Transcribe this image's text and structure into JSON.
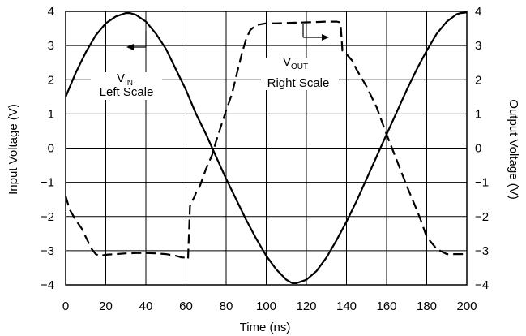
{
  "chart_data": {
    "type": "line",
    "xlabel": "Time (ns)",
    "ylabel_left": "Input Voltage (V)",
    "ylabel_right": "Output Voltage (V)",
    "xlim": [
      0,
      200
    ],
    "ylim": [
      -4,
      4
    ],
    "x_ticks": [
      0,
      20,
      40,
      60,
      80,
      100,
      120,
      140,
      160,
      180,
      200
    ],
    "y_ticks": [
      4,
      3,
      2,
      1,
      0,
      -1,
      -2,
      -3,
      -4
    ],
    "y_tick_labels": [
      "4",
      "3",
      "2",
      "1",
      "0",
      "−1",
      "−2",
      "−3",
      "−4"
    ],
    "grid": true,
    "series": [
      {
        "style": "solid",
        "x": [
          0,
          5,
          10,
          15,
          20,
          25,
          30,
          32,
          35,
          40,
          45,
          50,
          55,
          60,
          65,
          70,
          75,
          80,
          85,
          90,
          95,
          100,
          105,
          110,
          113,
          115,
          120,
          125,
          130,
          135,
          140,
          145,
          150,
          155,
          160,
          165,
          170,
          175,
          180,
          185,
          190,
          195,
          197,
          200
        ],
        "y": [
          1.5,
          2.2,
          2.8,
          3.3,
          3.65,
          3.85,
          3.95,
          3.95,
          3.9,
          3.7,
          3.35,
          2.9,
          2.3,
          1.7,
          1.0,
          0.4,
          -0.25,
          -0.9,
          -1.5,
          -2.1,
          -2.65,
          -3.15,
          -3.55,
          -3.85,
          -3.95,
          -3.95,
          -3.85,
          -3.6,
          -3.2,
          -2.7,
          -2.15,
          -1.55,
          -0.9,
          -0.25,
          0.4,
          1.05,
          1.7,
          2.3,
          2.85,
          3.35,
          3.7,
          3.92,
          3.95,
          3.97
        ]
      },
      {
        "style": "dashed",
        "x": [
          0,
          2,
          5,
          8,
          10,
          13,
          15,
          17,
          20,
          25,
          30,
          35,
          40,
          45,
          50,
          55,
          58,
          60,
          61,
          62,
          63,
          64,
          65,
          67,
          70,
          73,
          75,
          80,
          83,
          85,
          88,
          90,
          92,
          95,
          100,
          105,
          110,
          115,
          120,
          125,
          130,
          135,
          137,
          138,
          140,
          143,
          145,
          150,
          155,
          160,
          165,
          170,
          175,
          177,
          180,
          185,
          190,
          200
        ],
        "y": [
          -1.4,
          -1.8,
          -2.1,
          -2.35,
          -2.6,
          -2.95,
          -3.1,
          -3.15,
          -3.12,
          -3.1,
          -3.08,
          -3.07,
          -3.07,
          -3.08,
          -3.1,
          -3.15,
          -3.2,
          -3.2,
          -3.25,
          -1.7,
          -1.55,
          -1.45,
          -1.3,
          -1.1,
          -0.6,
          -0.2,
          0.2,
          1.1,
          1.6,
          2.1,
          2.8,
          3.2,
          3.45,
          3.6,
          3.65,
          3.65,
          3.66,
          3.67,
          3.68,
          3.69,
          3.7,
          3.7,
          3.68,
          2.85,
          2.75,
          2.55,
          2.3,
          1.8,
          1.2,
          0.4,
          -0.35,
          -1.1,
          -1.8,
          -2.1,
          -2.6,
          -2.95,
          -3.1,
          -3.1
        ]
      }
    ],
    "annotations": [
      {
        "main": "V",
        "sub": "IN",
        "line2": "Left Scale"
      },
      {
        "main": "V",
        "sub": "OUT",
        "line2": "Right Scale"
      }
    ]
  }
}
